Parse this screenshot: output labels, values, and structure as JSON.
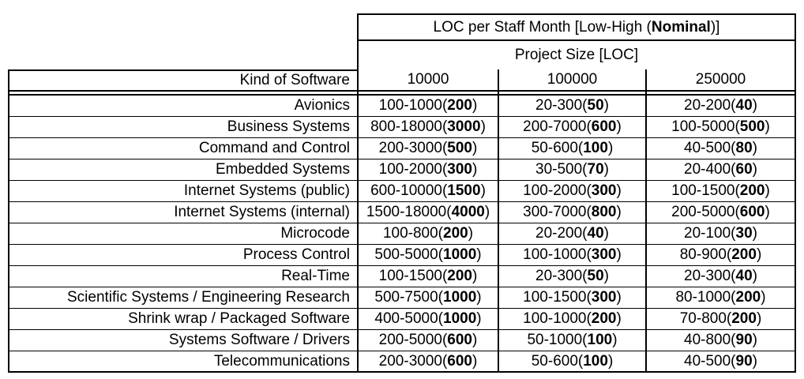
{
  "table": {
    "title_prefix": "LOC per Staff Month [Low-High (",
    "title_bold": "Nominal",
    "title_suffix": ")]",
    "subtitle": "Project Size [LOC]",
    "row_header": "Kind of Software",
    "size_columns": [
      "10000",
      "100000",
      "250000"
    ],
    "rows": [
      {
        "label": "Avionics",
        "cells": [
          {
            "range": "100-1000",
            "nominal": "200"
          },
          {
            "range": "20-300",
            "nominal": "50"
          },
          {
            "range": "20-200",
            "nominal": "40"
          }
        ]
      },
      {
        "label": "Business Systems",
        "cells": [
          {
            "range": "800-18000",
            "nominal": "3000"
          },
          {
            "range": "200-7000",
            "nominal": "600"
          },
          {
            "range": "100-5000",
            "nominal": "500"
          }
        ]
      },
      {
        "label": "Command and Control",
        "cells": [
          {
            "range": "200-3000",
            "nominal": "500"
          },
          {
            "range": "50-600",
            "nominal": "100"
          },
          {
            "range": "40-500",
            "nominal": "80"
          }
        ]
      },
      {
        "label": "Embedded Systems",
        "cells": [
          {
            "range": "100-2000",
            "nominal": "300"
          },
          {
            "range": "30-500",
            "nominal": "70"
          },
          {
            "range": "20-400",
            "nominal": "60"
          }
        ]
      },
      {
        "label": "Internet Systems (public)",
        "cells": [
          {
            "range": "600-10000",
            "nominal": "1500"
          },
          {
            "range": "100-2000",
            "nominal": "300"
          },
          {
            "range": "100-1500",
            "nominal": "200"
          }
        ]
      },
      {
        "label": "Internet Systems (internal)",
        "cells": [
          {
            "range": "1500-18000",
            "nominal": "4000"
          },
          {
            "range": "300-7000",
            "nominal": "800"
          },
          {
            "range": "200-5000",
            "nominal": "600"
          }
        ]
      },
      {
        "label": "Microcode",
        "cells": [
          {
            "range": "100-800",
            "nominal": "200"
          },
          {
            "range": "20-200",
            "nominal": "40"
          },
          {
            "range": "20-100",
            "nominal": "30"
          }
        ]
      },
      {
        "label": "Process Control",
        "cells": [
          {
            "range": "500-5000",
            "nominal": "1000"
          },
          {
            "range": "100-1000",
            "nominal": "300"
          },
          {
            "range": "80-900",
            "nominal": "200"
          }
        ]
      },
      {
        "label": "Real-Time",
        "cells": [
          {
            "range": "100-1500",
            "nominal": "200"
          },
          {
            "range": "20-300",
            "nominal": "50"
          },
          {
            "range": "20-300",
            "nominal": "40"
          }
        ]
      },
      {
        "label": "Scientific Systems / Engineering Research",
        "cells": [
          {
            "range": "500-7500",
            "nominal": "1000"
          },
          {
            "range": "100-1500",
            "nominal": "300"
          },
          {
            "range": "80-1000",
            "nominal": "200"
          }
        ]
      },
      {
        "label": "Shrink wrap / Packaged Software",
        "cells": [
          {
            "range": "400-5000",
            "nominal": "1000"
          },
          {
            "range": "100-1000",
            "nominal": "200"
          },
          {
            "range": "70-800",
            "nominal": "200"
          }
        ]
      },
      {
        "label": "Systems Software / Drivers",
        "cells": [
          {
            "range": "200-5000",
            "nominal": "600"
          },
          {
            "range": "50-1000",
            "nominal": "100"
          },
          {
            "range": "40-800",
            "nominal": "90"
          }
        ]
      },
      {
        "label": "Telecommunications",
        "cells": [
          {
            "range": "200-3000",
            "nominal": "600"
          },
          {
            "range": "50-600",
            "nominal": "100"
          },
          {
            "range": "40-500",
            "nominal": "90"
          }
        ]
      }
    ],
    "colors": {
      "border": "#000000",
      "text": "#000000",
      "background": "#ffffff"
    }
  }
}
